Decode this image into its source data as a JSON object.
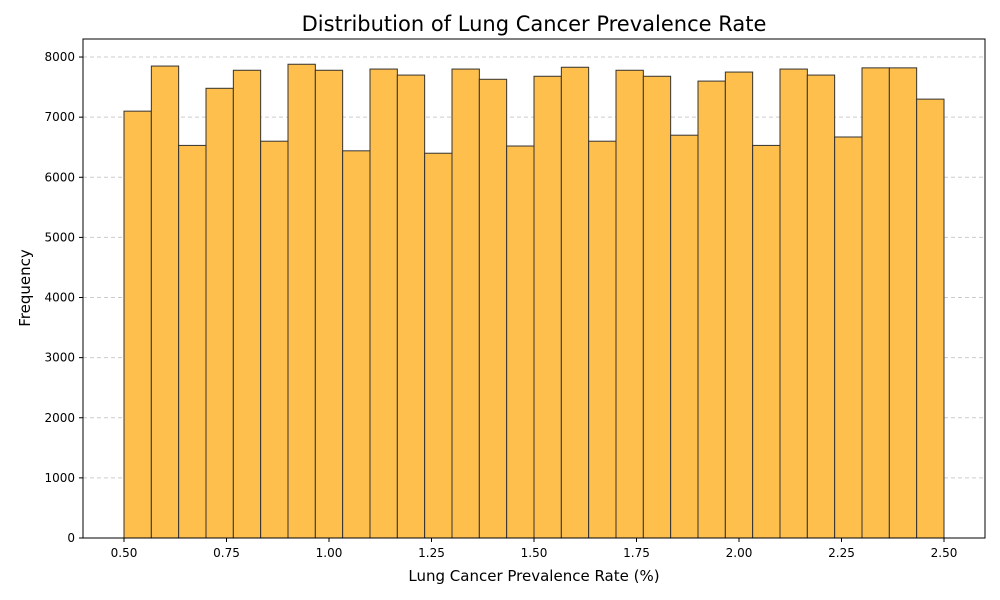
{
  "chart_data": {
    "type": "bar",
    "subtype": "histogram",
    "title": "Distribution of Lung Cancer Prevalence Rate",
    "xlabel": "Lung Cancer Prevalence Rate (%)",
    "ylabel": "Frequency",
    "bin_edges": [
      0.5,
      0.5667,
      0.6333,
      0.7,
      0.7667,
      0.8333,
      0.9,
      0.9667,
      1.0333,
      1.1,
      1.1667,
      1.2333,
      1.3,
      1.3667,
      1.4333,
      1.5,
      1.5667,
      1.6333,
      1.7,
      1.7667,
      1.8333,
      1.9,
      1.9667,
      2.0333,
      2.1,
      2.1667,
      2.2333,
      2.3,
      2.3667,
      2.4333,
      2.5
    ],
    "values": [
      7100,
      7850,
      6530,
      7480,
      7780,
      6600,
      7880,
      7780,
      6440,
      7800,
      7700,
      6400,
      7800,
      7630,
      6520,
      7680,
      7830,
      6600,
      7780,
      7680,
      6700,
      7600,
      7750,
      6530,
      7800,
      7700,
      6670,
      7820,
      7820,
      7300
    ],
    "xlim": [
      0.4,
      2.6
    ],
    "ylim": [
      0,
      8300
    ],
    "xticks": [
      "0.50",
      "0.75",
      "1.00",
      "1.25",
      "1.50",
      "1.75",
      "2.00",
      "2.25",
      "2.50"
    ],
    "yticks": [
      "0",
      "1000",
      "2000",
      "3000",
      "4000",
      "5000",
      "6000",
      "7000",
      "8000"
    ],
    "grid": "y-dashed",
    "colors": {
      "bar_fill": "#FFBF4D",
      "bar_edge": "#333333",
      "grid": "#cccccc"
    }
  }
}
